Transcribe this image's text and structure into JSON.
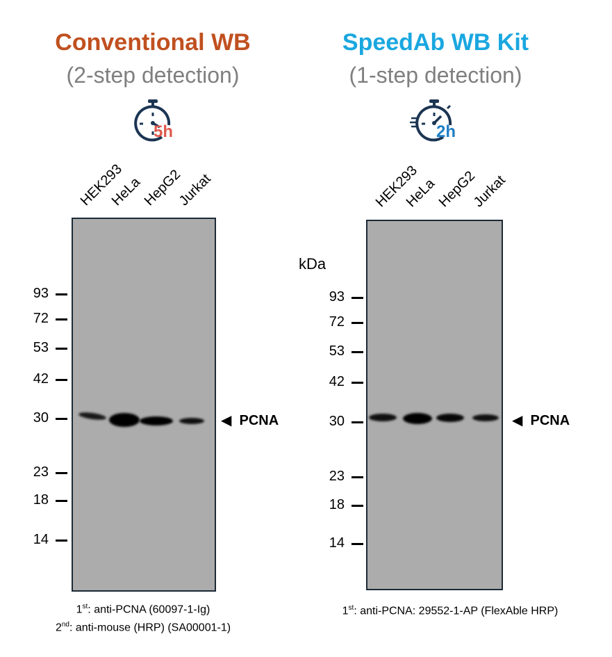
{
  "left": {
    "title": "Conventional WB",
    "title_color": "#c0501f",
    "subtitle": "(2-step detection)",
    "timer_label": "5h",
    "timer_color": "#e05a4e",
    "lanes": [
      "HEK293",
      "HeLa",
      "HepG2",
      "Jurkat"
    ],
    "markers": [
      "93",
      "72",
      "53",
      "42",
      "30",
      "23",
      "18",
      "14"
    ],
    "target_label": "PCNA",
    "caption_line1_sup": "st",
    "caption_line1": ": anti-PCNA (60097-1-Ig)",
    "caption_line1_num": "1",
    "caption_line2_num": "2",
    "caption_line2_sup": "nd",
    "caption_line2": ": anti-mouse (HRP) (SA00001-1)"
  },
  "right": {
    "title": "SpeedAb WB Kit",
    "title_color": "#1aa7e0",
    "subtitle": "(1-step detection)",
    "timer_label": "2h",
    "timer_color": "#1f7fc4",
    "lanes": [
      "HEK293",
      "HeLa",
      "HepG2",
      "Jurkat"
    ],
    "unit_label": "kDa",
    "markers": [
      "93",
      "72",
      "53",
      "42",
      "30",
      "23",
      "18",
      "14"
    ],
    "target_label": "PCNA",
    "caption_line1_num": "1",
    "caption_line1_sup": "st",
    "caption_line1": ": anti-PCNA: 29552-1-AP (FlexAble HRP)"
  }
}
